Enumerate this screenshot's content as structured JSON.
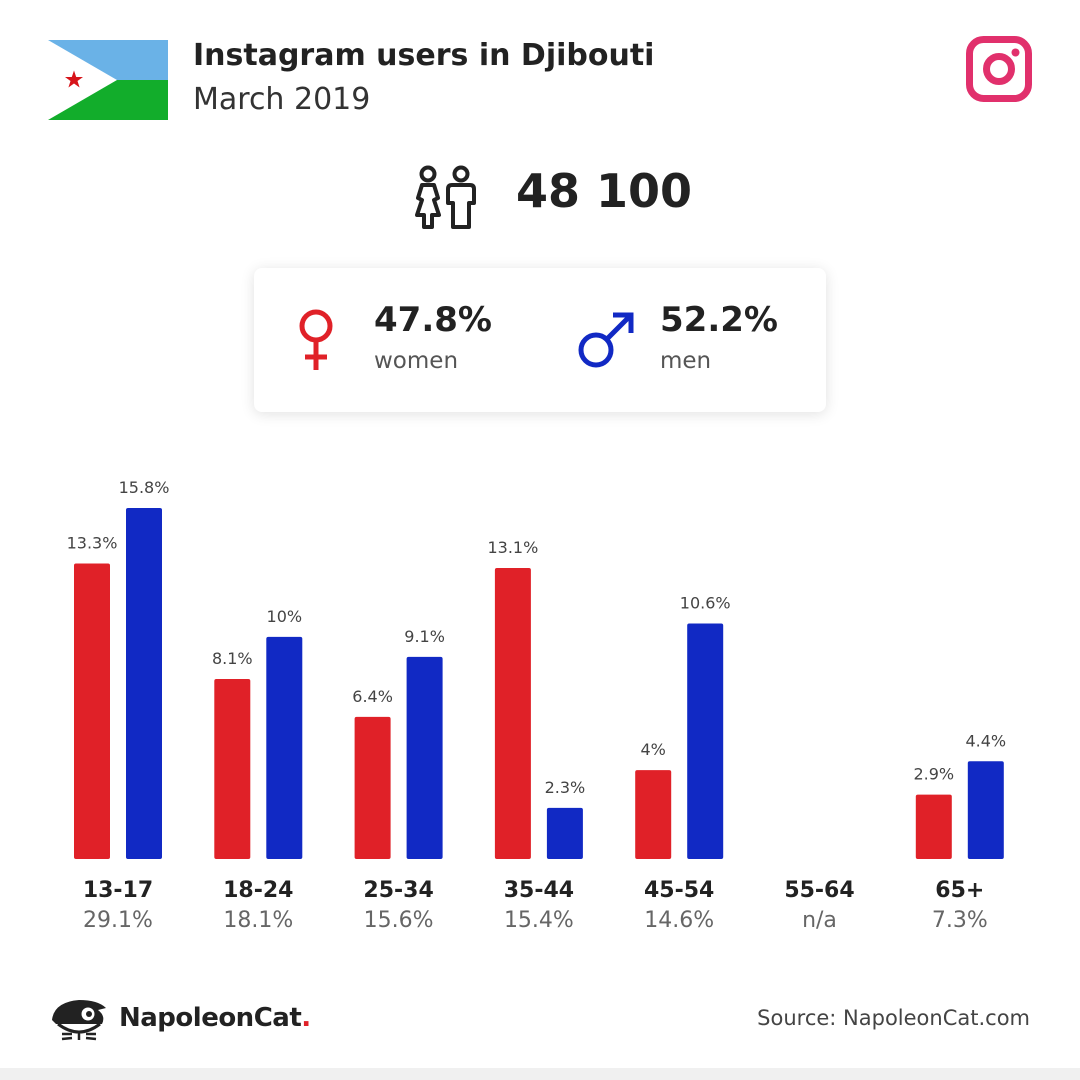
{
  "header": {
    "title": "Instagram users in Djibouti",
    "subtitle": "March 2019",
    "flag_icon": "djibouti-flag",
    "social_icon": "instagram-icon"
  },
  "total": {
    "value": "48 100",
    "icon": "people-icon"
  },
  "gender": {
    "women": {
      "pct": "47.8%",
      "label": "women",
      "icon": "female-symbol-icon",
      "color": "#e02128"
    },
    "men": {
      "pct": "52.2%",
      "label": "men",
      "icon": "male-symbol-icon",
      "color": "#1129c4"
    }
  },
  "chart_data": {
    "type": "bar",
    "categories": [
      "13-17",
      "18-24",
      "25-34",
      "35-44",
      "45-54",
      "55-64",
      "65+"
    ],
    "category_totals": [
      "29.1%",
      "18.1%",
      "15.6%",
      "15.4%",
      "14.6%",
      "n/a",
      "7.3%"
    ],
    "series": [
      {
        "values": [
          13.3,
          8.1,
          6.4,
          13.1,
          4,
          null,
          2.9
        ],
        "labels": [
          "13.3%",
          "8.1%",
          "6.4%",
          "13.1%",
          "4%",
          "",
          "2.9%"
        ],
        "color": "#e02128"
      },
      {
        "values": [
          15.8,
          10,
          9.1,
          2.3,
          10.6,
          null,
          4.4
        ],
        "labels": [
          "15.8%",
          "10%",
          "9.1%",
          "2.3%",
          "10.6%",
          "",
          "4.4%"
        ],
        "color": "#1129c4"
      }
    ],
    "ylim": [
      0,
      15.8
    ],
    "grid": false,
    "legend": "none"
  },
  "footer": {
    "brand_prefix": "NapoleonCat",
    "brand_dot": ".",
    "source": "Source: NapoleonCat.com"
  }
}
